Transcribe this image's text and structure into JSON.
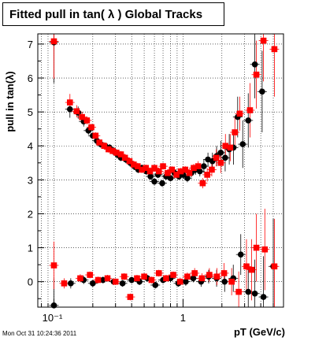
{
  "title": "Fitted pull in tan( λ )  Global Tracks",
  "timestamp": "Mon Oct 31 10:24:36 2011",
  "chart_data": {
    "type": "scatter",
    "title": "Fitted pull in tan( λ )  Global Tracks",
    "xlabel": "pT (GeV/c)",
    "ylabel": "pull in tan(λ)",
    "x_scale": "log",
    "xlim": [
      0.075,
      6.0
    ],
    "ylim": [
      -0.75,
      7.3
    ],
    "x_ticklabels": [
      "10⁻¹",
      "1"
    ],
    "y_ticks": [
      0,
      1,
      2,
      3,
      4,
      5,
      6,
      7
    ],
    "grid": true,
    "series": [
      {
        "color": "#000000",
        "points": [
          [
            0.1,
            7.05,
            1.2
          ],
          [
            0.133,
            5.08,
            0.25
          ],
          [
            0.154,
            4.98,
            0.18
          ],
          [
            0.17,
            4.72,
            0.15
          ],
          [
            0.185,
            4.45,
            0.12
          ],
          [
            0.2,
            4.3,
            0.1
          ],
          [
            0.215,
            4.15,
            0.1
          ],
          [
            0.23,
            4.05,
            0.1
          ],
          [
            0.25,
            4.0,
            0.1
          ],
          [
            0.27,
            3.95,
            0.1
          ],
          [
            0.29,
            3.85,
            0.1
          ],
          [
            0.31,
            3.75,
            0.1
          ],
          [
            0.33,
            3.65,
            0.1
          ],
          [
            0.36,
            3.6,
            0.1
          ],
          [
            0.39,
            3.5,
            0.1
          ],
          [
            0.42,
            3.4,
            0.1
          ],
          [
            0.45,
            3.3,
            0.1
          ],
          [
            0.48,
            3.35,
            0.1
          ],
          [
            0.52,
            3.25,
            0.1
          ],
          [
            0.56,
            3.1,
            0.1
          ],
          [
            0.6,
            2.95,
            0.1
          ],
          [
            0.64,
            3.15,
            0.1
          ],
          [
            0.69,
            2.9,
            0.1
          ],
          [
            0.74,
            3.1,
            0.1
          ],
          [
            0.8,
            3.05,
            0.1
          ],
          [
            0.86,
            3.2,
            0.1
          ],
          [
            0.93,
            3.1,
            0.1
          ],
          [
            1.0,
            3.15,
            0.1
          ],
          [
            1.08,
            3.05,
            0.12
          ],
          [
            1.16,
            3.2,
            0.12
          ],
          [
            1.25,
            3.3,
            0.15
          ],
          [
            1.35,
            3.25,
            0.15
          ],
          [
            1.45,
            3.4,
            0.2
          ],
          [
            1.56,
            3.6,
            0.2
          ],
          [
            1.69,
            3.55,
            0.25
          ],
          [
            1.82,
            3.7,
            0.3
          ],
          [
            1.96,
            3.8,
            0.35
          ],
          [
            2.12,
            3.65,
            0.4
          ],
          [
            2.28,
            3.9,
            0.45
          ],
          [
            2.46,
            3.95,
            0.5
          ],
          [
            2.65,
            4.85,
            0.6
          ],
          [
            2.9,
            4.05,
            0.7
          ],
          [
            3.2,
            4.75,
            0.8
          ],
          [
            3.6,
            6.4,
            1.0
          ],
          [
            4.1,
            5.6,
            1.2
          ],
          [
            0.1,
            -0.7,
            0.8
          ],
          [
            0.135,
            -0.05,
            0.15
          ],
          [
            0.17,
            0.05,
            0.12
          ],
          [
            0.2,
            -0.05,
            0.1
          ],
          [
            0.24,
            0.05,
            0.1
          ],
          [
            0.29,
            0.0,
            0.1
          ],
          [
            0.34,
            -0.05,
            0.1
          ],
          [
            0.4,
            0.05,
            0.1
          ],
          [
            0.46,
            0.0,
            0.1
          ],
          [
            0.53,
            0.1,
            0.1
          ],
          [
            0.61,
            -0.1,
            0.1
          ],
          [
            0.7,
            0.05,
            0.1
          ],
          [
            0.8,
            0.1,
            0.1
          ],
          [
            0.92,
            -0.05,
            0.1
          ],
          [
            1.05,
            0.0,
            0.12
          ],
          [
            1.2,
            0.1,
            0.12
          ],
          [
            1.38,
            0.0,
            0.15
          ],
          [
            1.58,
            0.15,
            0.2
          ],
          [
            1.82,
            0.1,
            0.25
          ],
          [
            2.1,
            0.0,
            0.3
          ],
          [
            2.45,
            0.1,
            0.4
          ],
          [
            2.8,
            0.8,
            0.6
          ],
          [
            3.2,
            -0.3,
            0.8
          ],
          [
            3.6,
            -0.35,
            1.0
          ],
          [
            4.2,
            -0.45,
            1.2
          ],
          [
            5.0,
            0.45,
            1.4
          ]
        ]
      },
      {
        "color": "#ff0000",
        "points": [
          [
            0.1,
            7.08,
            1.1
          ],
          [
            0.133,
            5.28,
            0.25
          ],
          [
            0.15,
            5.02,
            0.18
          ],
          [
            0.165,
            4.85,
            0.15
          ],
          [
            0.18,
            4.75,
            0.12
          ],
          [
            0.195,
            4.55,
            0.1
          ],
          [
            0.21,
            4.3,
            0.1
          ],
          [
            0.225,
            4.1,
            0.1
          ],
          [
            0.245,
            4.0,
            0.1
          ],
          [
            0.265,
            3.9,
            0.1
          ],
          [
            0.285,
            3.85,
            0.1
          ],
          [
            0.305,
            3.8,
            0.1
          ],
          [
            0.33,
            3.75,
            0.1
          ],
          [
            0.355,
            3.65,
            0.1
          ],
          [
            0.385,
            3.55,
            0.1
          ],
          [
            0.415,
            3.45,
            0.1
          ],
          [
            0.445,
            3.4,
            0.1
          ],
          [
            0.48,
            3.3,
            0.1
          ],
          [
            0.515,
            3.35,
            0.1
          ],
          [
            0.555,
            3.25,
            0.1
          ],
          [
            0.6,
            3.35,
            0.1
          ],
          [
            0.65,
            3.25,
            0.1
          ],
          [
            0.7,
            3.4,
            0.1
          ],
          [
            0.76,
            3.2,
            0.1
          ],
          [
            0.82,
            3.3,
            0.1
          ],
          [
            0.89,
            3.15,
            0.1
          ],
          [
            0.96,
            3.25,
            0.1
          ],
          [
            1.04,
            3.3,
            0.1
          ],
          [
            1.12,
            3.2,
            0.12
          ],
          [
            1.21,
            3.35,
            0.12
          ],
          [
            1.31,
            3.4,
            0.15
          ],
          [
            1.42,
            2.9,
            0.15
          ],
          [
            1.54,
            3.15,
            0.2
          ],
          [
            1.67,
            3.3,
            0.2
          ],
          [
            1.81,
            3.65,
            0.25
          ],
          [
            1.96,
            3.5,
            0.3
          ],
          [
            2.13,
            4.0,
            0.35
          ],
          [
            2.32,
            3.95,
            0.4
          ],
          [
            2.52,
            4.4,
            0.45
          ],
          [
            2.75,
            4.95,
            0.5
          ],
          [
            3.3,
            5.05,
            0.8
          ],
          [
            3.7,
            6.1,
            1.0
          ],
          [
            4.2,
            7.1,
            1.2
          ],
          [
            5.1,
            6.85,
            1.4
          ],
          [
            0.1,
            0.48,
            0.7
          ],
          [
            0.12,
            -0.05,
            0.15
          ],
          [
            0.16,
            0.1,
            0.12
          ],
          [
            0.19,
            0.2,
            0.1
          ],
          [
            0.22,
            0.05,
            0.1
          ],
          [
            0.26,
            0.1,
            0.1
          ],
          [
            0.3,
            0.0,
            0.1
          ],
          [
            0.35,
            0.15,
            0.1
          ],
          [
            0.39,
            -0.45,
            0.1
          ],
          [
            0.44,
            0.1,
            0.1
          ],
          [
            0.5,
            0.15,
            0.1
          ],
          [
            0.57,
            0.05,
            0.1
          ],
          [
            0.65,
            0.25,
            0.1
          ],
          [
            0.74,
            0.1,
            0.1
          ],
          [
            0.84,
            0.2,
            0.1
          ],
          [
            0.95,
            0.0,
            0.12
          ],
          [
            1.08,
            0.15,
            0.12
          ],
          [
            1.23,
            0.25,
            0.15
          ],
          [
            1.4,
            0.1,
            0.15
          ],
          [
            1.6,
            0.2,
            0.2
          ],
          [
            1.83,
            0.15,
            0.25
          ],
          [
            2.08,
            0.25,
            0.3
          ],
          [
            2.38,
            0.0,
            0.4
          ],
          [
            2.7,
            -0.3,
            0.6
          ],
          [
            3.1,
            0.45,
            0.8
          ],
          [
            3.4,
            0.35,
            0.9
          ],
          [
            3.7,
            1.0,
            1.0
          ],
          [
            4.3,
            0.95,
            1.2
          ],
          [
            5.1,
            0.45,
            1.4
          ]
        ]
      }
    ]
  }
}
